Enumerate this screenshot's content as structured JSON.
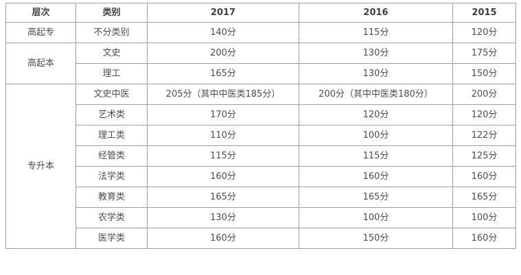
{
  "chart_data": {
    "type": "table",
    "title": "",
    "headers": [
      "层次",
      "类别",
      "2017",
      "2016",
      "2015"
    ],
    "groups": [
      {
        "level": "高起专",
        "rows": [
          {
            "category": "不分类别",
            "values": [
              "140分",
              "115分",
              "120分"
            ]
          }
        ]
      },
      {
        "level": "高起本",
        "rows": [
          {
            "category": "文史",
            "values": [
              "200分",
              "130分",
              "175分"
            ]
          },
          {
            "category": "理工",
            "values": [
              "165分",
              "130分",
              "150分"
            ]
          }
        ]
      },
      {
        "level": "专升本",
        "rows": [
          {
            "category": "文史中医",
            "values": [
              "205分（其中中医类185分）",
              "200分（其中中医类180分）",
              "200分"
            ]
          },
          {
            "category": "艺术类",
            "values": [
              "170分",
              "120分",
              "120分"
            ]
          },
          {
            "category": "理工类",
            "values": [
              "110分",
              "100分",
              "122分"
            ]
          },
          {
            "category": "经管类",
            "values": [
              "115分",
              "115分",
              "125分"
            ]
          },
          {
            "category": "法学类",
            "values": [
              "160分",
              "160分",
              "160分"
            ]
          },
          {
            "category": "教育类",
            "values": [
              "165分",
              "165分",
              "165分"
            ]
          },
          {
            "category": "农学类",
            "values": [
              "130分",
              "100分",
              "100分"
            ]
          },
          {
            "category": "医学类",
            "values": [
              "160分",
              "150分",
              "160分"
            ]
          }
        ]
      }
    ],
    "layout": {
      "grid": true,
      "header_bold": true,
      "cell_align": "center"
    },
    "colors": {
      "background": "#ffffff",
      "border": "#9e9e9e",
      "body_text": "#4d4d4d",
      "header_text": "#3f3f3f"
    }
  }
}
